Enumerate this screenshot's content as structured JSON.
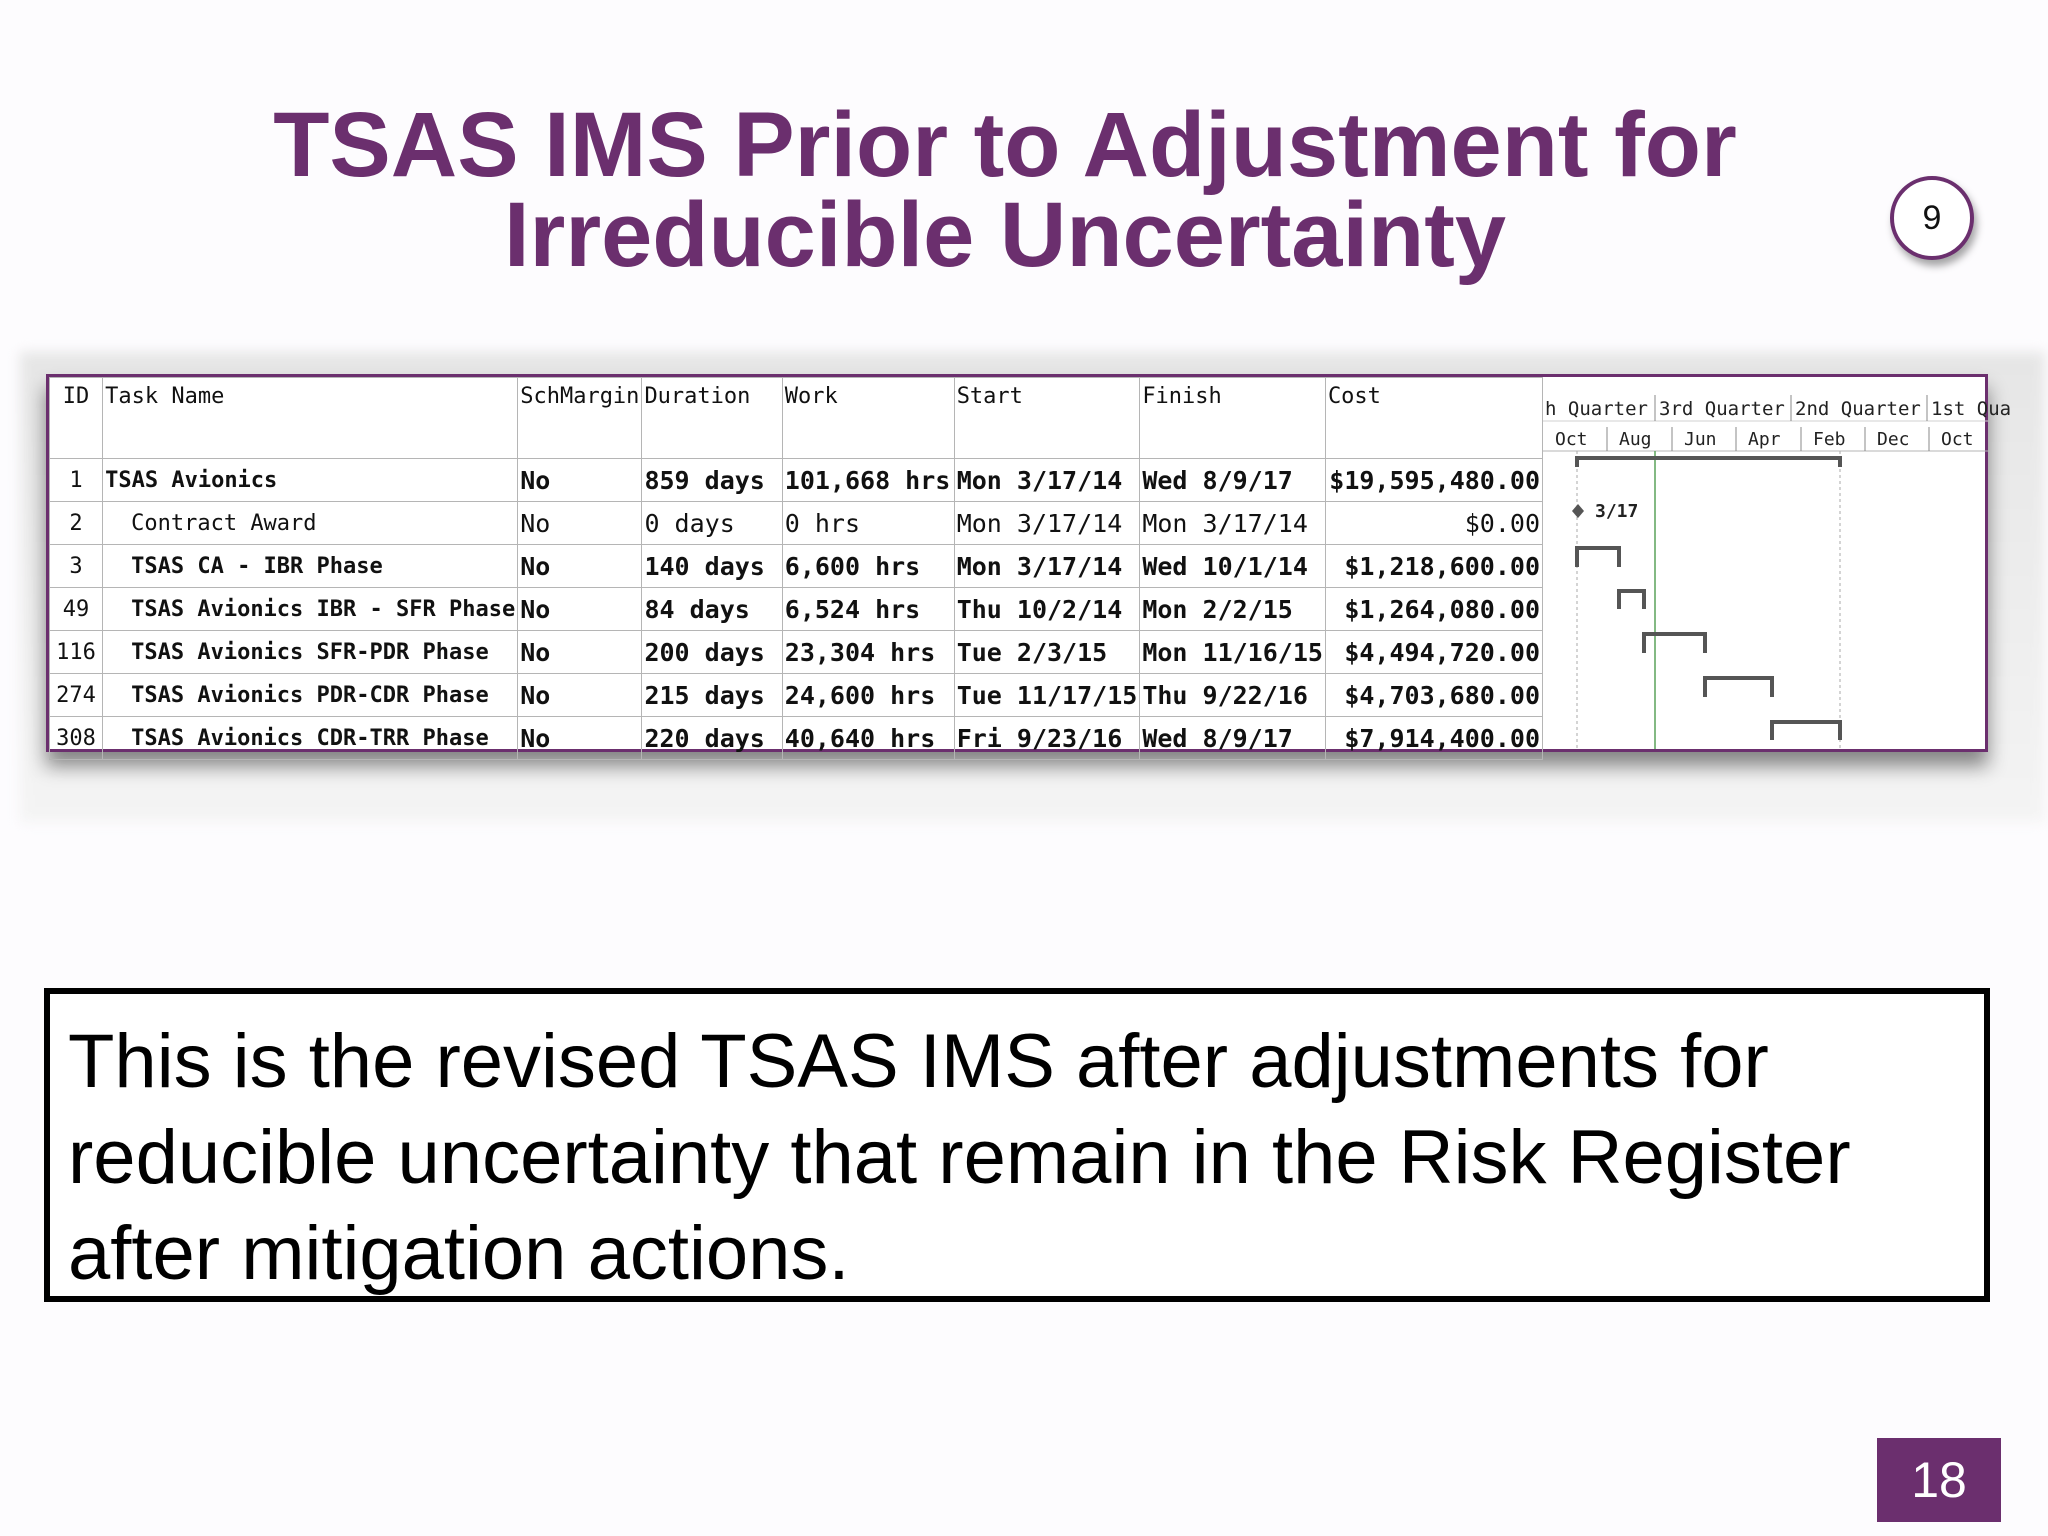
{
  "slide": {
    "title_line1": "TSAS IMS Prior to Adjustment for",
    "title_line2": "Irreducible Uncertainty",
    "badge": "9",
    "page_number": "18",
    "note": "This is the revised TSAS IMS after adjustments for reducible uncertainty that remain in the Risk Register after mitigation actions."
  },
  "table": {
    "headers": [
      "ID",
      "Task Name",
      "SchMargin",
      "Duration",
      "Work",
      "Start",
      "Finish",
      "Cost"
    ],
    "rows": [
      {
        "id": "1",
        "name": "TSAS Avionics",
        "margin": "No",
        "duration": "859 days",
        "work": "101,668 hrs",
        "start": "Mon 3/17/14",
        "finish": "Wed 8/9/17",
        "cost": "$19,595,480.00"
      },
      {
        "id": "2",
        "name": "Contract Award",
        "margin": "No",
        "duration": "0 days",
        "work": "0 hrs",
        "start": "Mon 3/17/14",
        "finish": "Mon 3/17/14",
        "cost": "$0.00"
      },
      {
        "id": "3",
        "name": "TSAS CA - IBR Phase",
        "margin": "No",
        "duration": "140 days",
        "work": "6,600 hrs",
        "start": "Mon 3/17/14",
        "finish": "Wed 10/1/14",
        "cost": "$1,218,600.00"
      },
      {
        "id": "49",
        "name": "TSAS Avionics IBR - SFR Phase",
        "margin": "No",
        "duration": "84 days",
        "work": "6,524 hrs",
        "start": "Thu 10/2/14",
        "finish": "Mon 2/2/15",
        "cost": "$1,264,080.00"
      },
      {
        "id": "116",
        "name": "TSAS Avionics SFR-PDR Phase",
        "margin": "No",
        "duration": "200 days",
        "work": "23,304 hrs",
        "start": "Tue 2/3/15",
        "finish": "Mon 11/16/15",
        "cost": "$4,494,720.00"
      },
      {
        "id": "274",
        "name": "TSAS Avionics PDR-CDR Phase",
        "margin": "No",
        "duration": "215 days",
        "work": "24,600 hrs",
        "start": "Tue 11/17/15",
        "finish": "Thu 9/22/16",
        "cost": "$4,703,680.00"
      },
      {
        "id": "308",
        "name": "TSAS Avionics CDR-TRR Phase",
        "margin": "No",
        "duration": "220 days",
        "work": "40,640 hrs",
        "start": "Fri 9/23/16",
        "finish": "Wed 8/9/17",
        "cost": "$7,914,400.00"
      }
    ]
  },
  "gantt": {
    "quarters": [
      "h Quarter",
      "3rd Quarter",
      "2nd Quarter",
      "1st Qua"
    ],
    "months": [
      "Oct",
      "Aug",
      "Jun",
      "Apr",
      "Feb",
      "Dec",
      "Oct"
    ],
    "milestone_label": "3/17"
  }
}
